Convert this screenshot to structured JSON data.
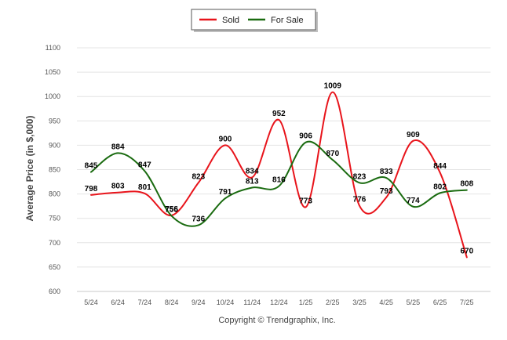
{
  "chart_data": {
    "type": "line",
    "categories": [
      "5/24",
      "6/24",
      "7/24",
      "8/24",
      "9/24",
      "10/24",
      "11/24",
      "12/24",
      "1/25",
      "2/25",
      "3/25",
      "4/25",
      "5/25",
      "6/25",
      "7/25"
    ],
    "series": [
      {
        "name": "Sold",
        "color": "#e8141b",
        "values": [
          798,
          803,
          801,
          756,
          823,
          900,
          834,
          952,
          773,
          1009,
          776,
          793,
          909,
          844,
          670
        ]
      },
      {
        "name": "For Sale",
        "color": "#1a6b10",
        "values": [
          845,
          884,
          847,
          755,
          736,
          791,
          813,
          816,
          906,
          870,
          823,
          833,
          774,
          802,
          808
        ]
      }
    ],
    "yticks": [
      600,
      650,
      700,
      750,
      800,
      850,
      900,
      950,
      1000,
      1050,
      1100
    ],
    "ylim": [
      600,
      1100
    ],
    "ylabel": "Average Price (in $,000)",
    "xlabel": "",
    "legend_position": "top-center",
    "grid": true
  },
  "footer": {
    "copyright": "Copyright © Trendgraphix, Inc."
  }
}
